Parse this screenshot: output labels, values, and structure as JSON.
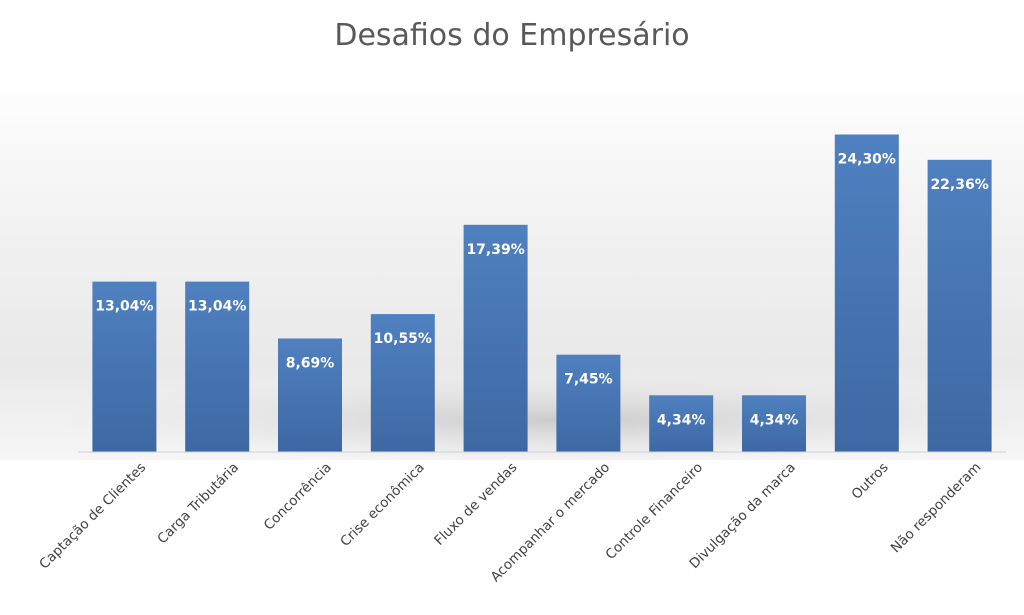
{
  "chart_data": {
    "type": "bar",
    "title": "Desafios do Empresário",
    "xlabel": "",
    "ylabel": "",
    "ylim": [
      0,
      30
    ],
    "grid": false,
    "categories": [
      "Captação de Clientes",
      "Carga Tributária",
      "Concorrência",
      "Crise econômica",
      "Fluxo de vendas",
      "Acompanhar o mercado",
      "Controle Financeiro",
      "Divulgação da marca",
      "Outros",
      "Não responderam"
    ],
    "values": [
      13.04,
      13.04,
      8.69,
      10.55,
      17.39,
      7.45,
      4.34,
      4.34,
      24.3,
      22.36
    ],
    "value_labels": [
      "13,04%",
      "13,04%",
      "8,69%",
      "10,55%",
      "17,39%",
      "7,45%",
      "4,34%",
      "4,34%",
      "24,30%",
      "22,36%"
    ],
    "bar_color": "#4a7ab8"
  }
}
